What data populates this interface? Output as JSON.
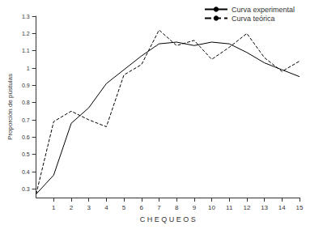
{
  "chart_data": {
    "type": "line",
    "x_label": "C H E Q U E O S",
    "y_label": "Proporción de pústulas",
    "x": [
      0,
      1,
      2,
      3,
      4,
      5,
      6,
      7,
      8,
      9,
      10,
      11,
      12,
      13,
      14,
      15
    ],
    "series": [
      {
        "name": "Curva experimental",
        "color": "#000000",
        "line_style": "solid",
        "values": [
          0.27,
          0.38,
          0.68,
          0.77,
          0.91,
          0.99,
          1.07,
          1.14,
          1.15,
          1.13,
          1.15,
          1.14,
          1.09,
          1.03,
          0.99,
          0.95
        ]
      },
      {
        "name": "Curva teórica",
        "color": "#000000",
        "line_style": "dashed",
        "values": [
          0.27,
          0.69,
          0.75,
          0.7,
          0.66,
          0.96,
          1.02,
          1.22,
          1.13,
          1.16,
          1.05,
          1.12,
          1.2,
          1.06,
          0.98,
          1.04
        ]
      }
    ],
    "xlim": [
      0,
      15
    ],
    "xticks": [
      1,
      2,
      3,
      4,
      5,
      6,
      7,
      8,
      9,
      10,
      11,
      12,
      13,
      14,
      15
    ],
    "ylim": [
      0.25,
      1.3
    ],
    "yticks": [
      0.3,
      0.4,
      0.5,
      0.6,
      0.7,
      0.8,
      0.9,
      1,
      1.1,
      1.2,
      1.3
    ],
    "grid": false,
    "legend": "top-right"
  }
}
